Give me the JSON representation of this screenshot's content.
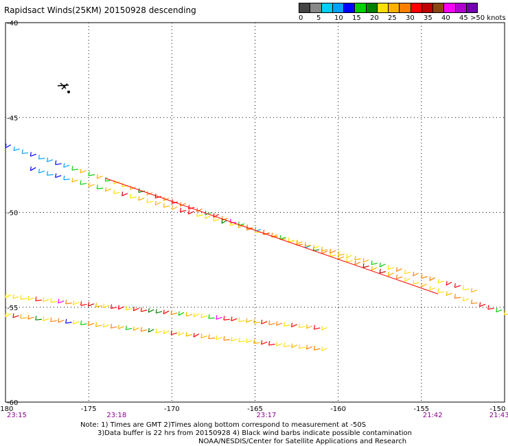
{
  "title": "Rapidsact Winds(25KM) 20150928 descending",
  "legend": {
    "unit_label": ">50 knots",
    "labels": [
      "0",
      "5",
      "10",
      "15",
      "20",
      "25",
      "30",
      "35",
      "40",
      "45"
    ],
    "colors": [
      "#444444",
      "#888888",
      "#00cfff",
      "#00a0ff",
      "#0000ff",
      "#00d000",
      "#008000",
      "#ffe000",
      "#ffb000",
      "#ff8000",
      "#ff0000",
      "#c00000",
      "#8b4513",
      "#ff00ff",
      "#b000d0",
      "#7000b0"
    ]
  },
  "map": {
    "lon_ticks": [
      "-180",
      "-175",
      "-170",
      "-165",
      "-160",
      "-155",
      "-150"
    ],
    "lat_ticks": [
      "-40",
      "-45",
      "-50",
      "-55",
      "-60"
    ],
    "lon_range": [
      -180,
      -150
    ],
    "lat_range": [
      -40,
      -60
    ],
    "time_labels": [
      {
        "lon": -180,
        "text": "23:15"
      },
      {
        "lon": -174,
        "text": "23:18"
      },
      {
        "lon": -165,
        "text": "23:17"
      },
      {
        "lon": -155,
        "text": "21:42"
      },
      {
        "lon": -151,
        "text": "21:43"
      }
    ]
  },
  "swaths": [
    {
      "name": "upper-1",
      "from": [
        -180,
        -46.6
      ],
      "to": [
        -150,
        -55.4
      ],
      "spacing": 0.5,
      "offset": 0.0
    },
    {
      "name": "upper-2",
      "from": [
        -178.5,
        -47.8
      ],
      "to": [
        -152,
        -54.2
      ],
      "spacing": 0.5,
      "offset": 0.25
    },
    {
      "name": "lower-1",
      "from": [
        -180,
        -54.5
      ],
      "to": [
        -161,
        -56.2
      ],
      "spacing": 0.45,
      "offset": 0.0
    },
    {
      "name": "lower-2",
      "from": [
        -180,
        -55.5
      ],
      "to": [
        -161,
        -57.3
      ],
      "spacing": 0.45,
      "offset": 0.2
    }
  ],
  "notes": {
    "line1": "Note: 1) Times are GMT 2)Times along bottom correspond to measurement at -50S",
    "line2": "3)Data buffer is 22 hrs from 20150928 4) Black wind barbs indicate possible contamination",
    "line3": "NOAA/NESDIS/Center for Satellite Applications and Research"
  }
}
